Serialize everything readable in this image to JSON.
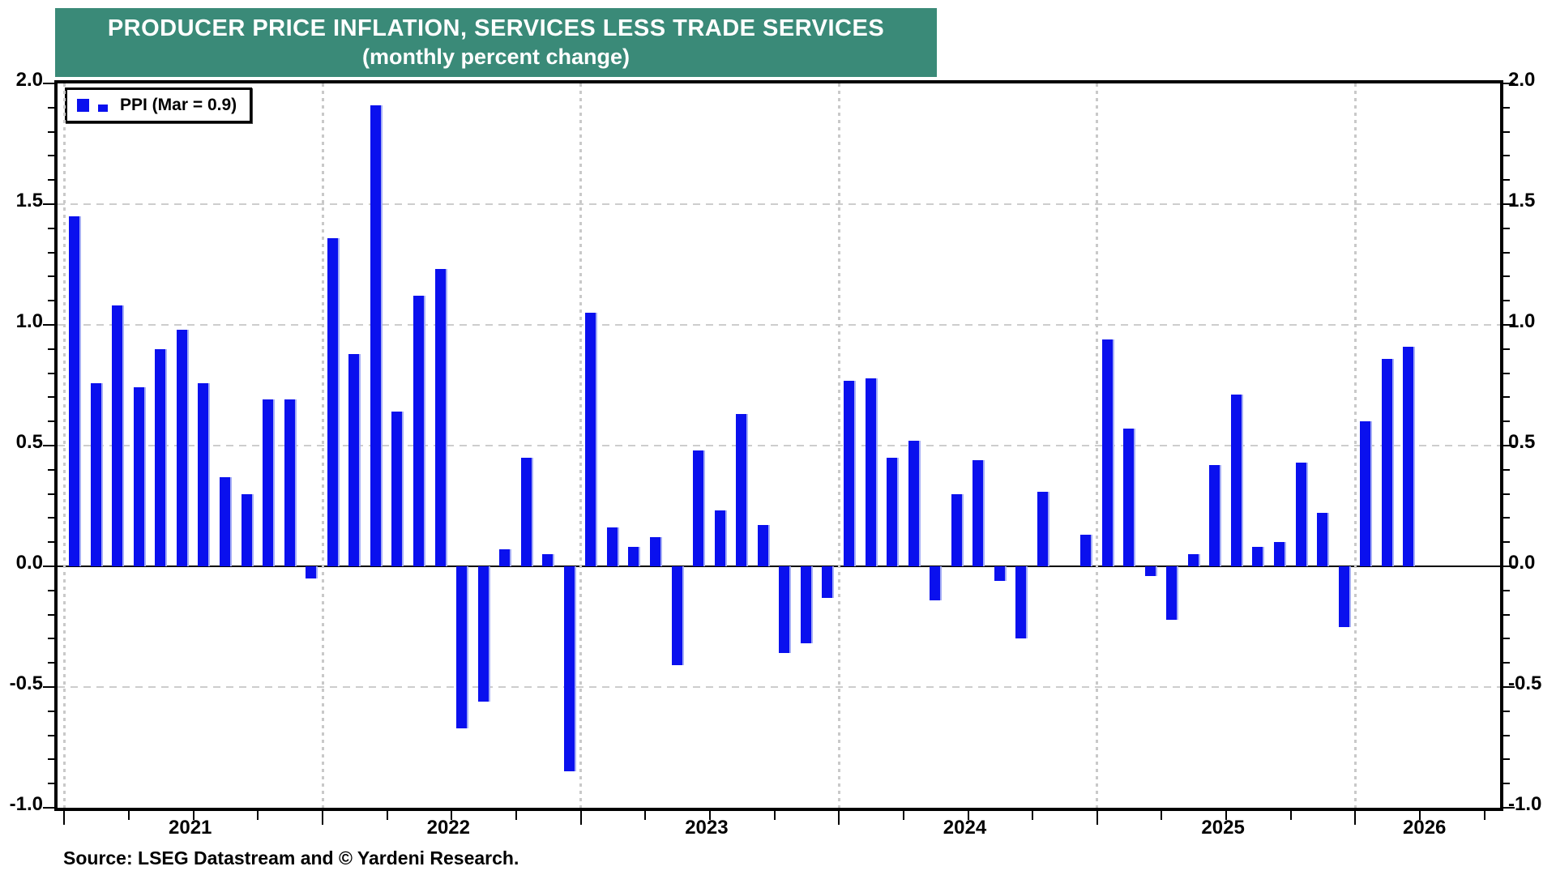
{
  "title": {
    "line1": "PRODUCER PRICE INFLATION, SERVICES LESS TRADE SERVICES",
    "line2": "(monthly percent change)"
  },
  "legend": {
    "label": "PPI (Mar = 0.9)"
  },
  "source": "Source: LSEG Datastream and © Yardeni Research.",
  "colors": {
    "bar": "#0a10ee",
    "bar_edge": "#a6aef5",
    "header_bg": "#3a8a78",
    "header_text": "#ffffff",
    "grid_dash": "#cdcdcd",
    "grid_dot": "#c9c9c9",
    "axis": "#000000"
  },
  "y_axis": {
    "min": -1.0,
    "max": 2.0,
    "major_step": 0.5,
    "minor_step": 0.1,
    "labels": [
      "2.0",
      "1.5",
      "1.0",
      "0.5",
      "0.0",
      "-0.5",
      "-1.0"
    ],
    "sides": "both"
  },
  "x_axis": {
    "year_labels": [
      "2021",
      "2022",
      "2023",
      "2024",
      "2025",
      "2026"
    ],
    "first_year": 2021,
    "tick_interval": "quarterly",
    "gridlines": "yearly-dotted"
  },
  "chart_data": {
    "type": "bar",
    "title": "PRODUCER PRICE INFLATION, SERVICES LESS TRADE SERVICES (monthly percent change)",
    "series_name": "PPI",
    "start": "2021-01",
    "end": "2026-03",
    "ylim": [
      -1.0,
      2.0
    ],
    "grid": "horizontal-dashed-major, vertical-dotted-yearly",
    "legend_position": "top-left",
    "months": [
      "2021-01",
      "2021-02",
      "2021-03",
      "2021-04",
      "2021-05",
      "2021-06",
      "2021-07",
      "2021-08",
      "2021-09",
      "2021-10",
      "2021-11",
      "2021-12",
      "2022-01",
      "2022-02",
      "2022-03",
      "2022-04",
      "2022-05",
      "2022-06",
      "2022-07",
      "2022-08",
      "2022-09",
      "2022-10",
      "2022-11",
      "2022-12",
      "2023-01",
      "2023-02",
      "2023-03",
      "2023-04",
      "2023-05",
      "2023-06",
      "2023-07",
      "2023-08",
      "2023-09",
      "2023-10",
      "2023-11",
      "2023-12",
      "2024-01",
      "2024-02",
      "2024-03",
      "2024-04",
      "2024-05",
      "2024-06",
      "2024-07",
      "2024-08",
      "2024-09",
      "2024-10",
      "2024-11",
      "2024-12",
      "2025-01",
      "2025-02",
      "2025-03",
      "2025-04",
      "2025-05",
      "2025-06",
      "2025-07",
      "2025-08",
      "2025-09",
      "2025-10",
      "2025-11",
      "2025-12",
      "2026-01",
      "2026-02",
      "2026-03"
    ],
    "values": [
      1.45,
      0.76,
      1.08,
      0.74,
      0.9,
      0.98,
      0.76,
      0.37,
      0.3,
      0.69,
      0.69,
      -0.05,
      1.36,
      0.88,
      1.91,
      0.64,
      1.12,
      1.23,
      -0.67,
      -0.56,
      0.07,
      0.45,
      0.05,
      -0.85,
      1.05,
      0.16,
      0.08,
      0.12,
      -0.41,
      0.48,
      0.23,
      0.63,
      0.17,
      -0.36,
      -0.32,
      -0.13,
      0.77,
      0.78,
      0.45,
      0.52,
      -0.14,
      0.3,
      0.44,
      -0.06,
      -0.3,
      0.31,
      0.0,
      0.13,
      0.94,
      0.57,
      -0.04,
      -0.22,
      0.05,
      0.42,
      0.71,
      0.08,
      0.1,
      0.43,
      0.22,
      -0.25,
      0.6,
      0.86,
      0.91
    ]
  }
}
